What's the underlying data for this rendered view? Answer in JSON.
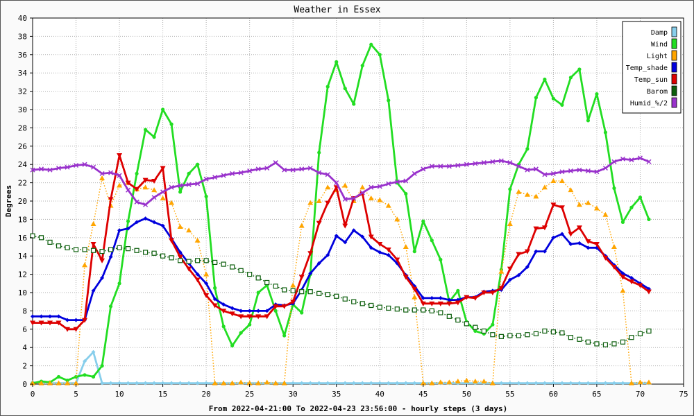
{
  "chart_data": {
    "type": "line",
    "title": "Weather in Essex",
    "xlabel": "From 2022-04-21:00 To 2022-04-23 23:56:00 - hourly steps (3 days)",
    "ylabel": "Degrees",
    "xlim": [
      0,
      75
    ],
    "ylim": [
      0,
      40
    ],
    "xticks": [
      0,
      5,
      10,
      15,
      20,
      25,
      30,
      35,
      40,
      45,
      50,
      55,
      60,
      65,
      70,
      75
    ],
    "yticks": [
      0,
      2,
      4,
      6,
      8,
      10,
      12,
      14,
      16,
      18,
      20,
      22,
      24,
      26,
      28,
      30,
      32,
      34,
      36,
      38,
      40
    ],
    "grid": true,
    "legend_position": "top-right",
    "series": [
      {
        "name": "Damp",
        "color": "#87ceeb",
        "style": "solid",
        "marker": "diamond",
        "values": [
          0.2,
          0.1,
          0.1,
          0.1,
          0.1,
          0.1,
          2.5,
          3.5,
          0.1,
          0.1,
          0.1,
          0.1,
          0.1,
          0.1,
          0.1,
          0.1,
          0.1,
          0.1,
          0.1,
          0.1,
          0.1,
          0.1,
          0.1,
          0.1,
          0.1,
          0.1,
          0.1,
          0.1,
          0.1,
          0.1,
          0.1,
          0.1,
          0.1,
          0.1,
          0.1,
          0.1,
          0.1,
          0.1,
          0.1,
          0.1,
          0.1,
          0.1,
          0.1,
          0.1,
          0.1,
          0.1,
          0.1,
          0.1,
          0.1,
          0.1,
          0.1,
          0.1,
          0.1,
          0.1,
          0.1,
          0.1,
          0.1,
          0.1,
          0.1,
          0.1,
          0.1,
          0.1,
          0.1,
          0.1,
          0.1,
          0.1,
          0.1,
          0.1,
          0.1,
          0.1,
          0.1,
          0.1
        ]
      },
      {
        "name": "Wind",
        "color": "#22dd22",
        "style": "solid",
        "marker": "dot",
        "values": [
          0.1,
          0.3,
          0.2,
          0.8,
          0.4,
          0.8,
          1.0,
          0.8,
          2.0,
          8.5,
          11.0,
          17.8,
          23.0,
          27.8,
          27.0,
          30.0,
          28.4,
          21.0,
          23.0,
          24.0,
          20.5,
          10.5,
          6.3,
          4.2,
          5.6,
          6.5,
          10.0,
          10.8,
          8.0,
          5.3,
          8.7,
          7.8,
          12.0,
          25.3,
          32.5,
          35.2,
          32.3,
          30.6,
          34.8,
          37.1,
          36.0,
          31.0,
          22.0,
          20.8,
          14.5,
          17.8,
          15.7,
          13.6,
          9.0,
          10.2,
          6.8,
          5.8,
          5.5,
          6.5,
          12.5,
          21.3,
          24.0,
          25.7,
          31.3,
          33.3,
          31.2,
          30.5,
          33.5,
          34.4,
          28.8,
          31.7,
          27.5,
          21.4,
          17.7,
          19.3,
          20.4,
          18.0
        ]
      },
      {
        "name": "Light",
        "color": "#ffa500",
        "style": "dotted",
        "marker": "triangle",
        "values": [
          0.1,
          0.1,
          0.1,
          0.1,
          0.1,
          0.1,
          13.0,
          17.5,
          22.5,
          19.5,
          21.7,
          22.0,
          21.3,
          21.5,
          21.2,
          20.3,
          19.8,
          17.2,
          16.8,
          15.7,
          12.0,
          0.1,
          0.1,
          0.1,
          0.2,
          0.1,
          0.1,
          0.2,
          0.1,
          0.1,
          10.8,
          17.3,
          19.8,
          20.0,
          21.5,
          21.2,
          21.7,
          20.0,
          21.5,
          20.3,
          20.1,
          19.5,
          18.0,
          15.0,
          9.5,
          0.1,
          0.1,
          0.2,
          0.2,
          0.3,
          0.4,
          0.3,
          0.3,
          0.1,
          12.3,
          17.5,
          21.0,
          20.7,
          20.5,
          21.5,
          22.2,
          22.2,
          21.2,
          19.6,
          19.8,
          19.2,
          18.5,
          15.0,
          10.2,
          0.1,
          0.2,
          0.2
        ]
      },
      {
        "name": "Temp_shade",
        "color": "#0000dd",
        "style": "solid",
        "marker": "diamond",
        "values": [
          7.4,
          7.4,
          7.4,
          7.4,
          7.0,
          7.0,
          7.0,
          10.2,
          11.6,
          13.9,
          16.8,
          17.0,
          17.7,
          18.1,
          17.7,
          17.3,
          15.9,
          14.4,
          13.2,
          12.0,
          11.0,
          9.3,
          8.7,
          8.3,
          8.0,
          8.0,
          8.0,
          8.0,
          8.7,
          8.6,
          8.8,
          10.3,
          12.1,
          13.2,
          14.1,
          16.2,
          15.5,
          16.8,
          16.1,
          14.9,
          14.4,
          14.1,
          13.2,
          11.9,
          10.7,
          9.4,
          9.4,
          9.4,
          9.2,
          9.2,
          9.5,
          9.5,
          10.1,
          10.2,
          10.3,
          11.4,
          11.9,
          12.8,
          14.5,
          14.5,
          16.0,
          16.4,
          15.3,
          15.4,
          14.9,
          14.9,
          14.0,
          13.0,
          12.1,
          11.6,
          11.0,
          10.4
        ]
      },
      {
        "name": "Temp_sun",
        "color": "#dd0000",
        "style": "solid",
        "marker": "triangle-down",
        "values": [
          6.7,
          6.7,
          6.7,
          6.7,
          6.0,
          6.0,
          7.0,
          15.3,
          13.5,
          20.2,
          25.0,
          22.0,
          21.3,
          22.3,
          22.2,
          23.6,
          15.7,
          13.9,
          12.6,
          11.4,
          9.7,
          8.6,
          8.0,
          7.7,
          7.4,
          7.4,
          7.4,
          7.4,
          8.5,
          8.5,
          9.0,
          11.7,
          14.3,
          17.6,
          19.8,
          21.5,
          17.3,
          20.3,
          20.8,
          16.1,
          15.3,
          14.7,
          13.6,
          11.7,
          10.4,
          8.8,
          8.8,
          8.8,
          8.8,
          8.9,
          9.5,
          9.4,
          10.0,
          10.0,
          10.5,
          12.6,
          14.2,
          14.5,
          17.0,
          17.1,
          19.6,
          19.3,
          16.4,
          17.1,
          15.6,
          15.3,
          13.8,
          12.8,
          11.7,
          11.2,
          10.8,
          10.1
        ]
      },
      {
        "name": "Barom",
        "color": "#0b5d0b",
        "style": "dotted",
        "marker": "square",
        "values": [
          16.2,
          16.0,
          15.5,
          15.1,
          14.9,
          14.7,
          14.7,
          14.6,
          14.5,
          14.7,
          14.9,
          14.8,
          14.6,
          14.4,
          14.3,
          14.0,
          13.8,
          13.5,
          13.4,
          13.5,
          13.5,
          13.3,
          13.1,
          12.8,
          12.4,
          12.0,
          11.6,
          11.1,
          10.7,
          10.3,
          10.2,
          10.1,
          10.1,
          9.9,
          9.8,
          9.6,
          9.3,
          9.0,
          8.8,
          8.6,
          8.4,
          8.3,
          8.2,
          8.1,
          8.1,
          8.1,
          8.0,
          7.8,
          7.4,
          7.0,
          6.6,
          6.2,
          5.8,
          5.4,
          5.2,
          5.3,
          5.3,
          5.4,
          5.5,
          5.8,
          5.7,
          5.6,
          5.1,
          4.9,
          4.6,
          4.4,
          4.3,
          4.4,
          4.6,
          5.1,
          5.5,
          5.8
        ]
      },
      {
        "name": "Humid_%/2",
        "color": "#9932cc",
        "style": "solid",
        "marker": "cross",
        "values": [
          23.4,
          23.5,
          23.4,
          23.6,
          23.7,
          23.9,
          24.0,
          23.7,
          23.0,
          23.1,
          22.8,
          21.2,
          19.9,
          19.6,
          20.4,
          21.0,
          21.5,
          21.7,
          21.8,
          21.9,
          22.4,
          22.6,
          22.8,
          23.0,
          23.1,
          23.3,
          23.5,
          23.6,
          24.2,
          23.4,
          23.4,
          23.5,
          23.6,
          23.1,
          22.9,
          22.0,
          20.2,
          20.3,
          20.9,
          21.5,
          21.6,
          21.9,
          22.1,
          22.2,
          23.0,
          23.5,
          23.8,
          23.8,
          23.8,
          23.9,
          24.0,
          24.1,
          24.2,
          24.3,
          24.4,
          24.2,
          23.8,
          23.4,
          23.5,
          22.9,
          23.0,
          23.2,
          23.3,
          23.4,
          23.3,
          23.2,
          23.6,
          24.3,
          24.6,
          24.5,
          24.7,
          24.3
        ]
      }
    ]
  }
}
